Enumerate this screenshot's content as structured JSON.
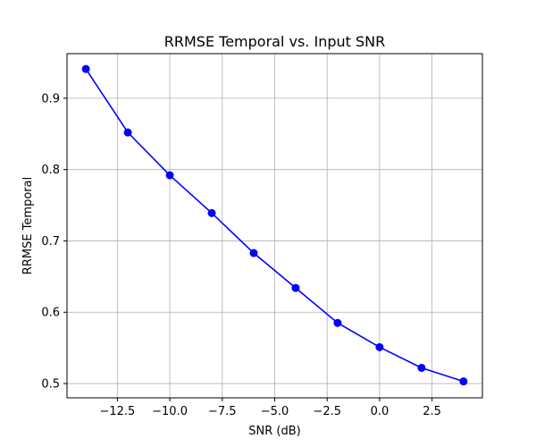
{
  "chart_data": {
    "type": "line",
    "title": "RRMSE Temporal vs. Input SNR",
    "xlabel": "SNR (dB)",
    "ylabel": "RRMSE Temporal",
    "x": [
      -14,
      -12,
      -10,
      -8,
      -6,
      -4,
      -2,
      0,
      2,
      4
    ],
    "series": [
      {
        "values": [
          0.941,
          0.852,
          0.792,
          0.739,
          0.683,
          0.634,
          0.585,
          0.551,
          0.522,
          0.503
        ],
        "color": "#0000ff",
        "marker": "circle"
      }
    ],
    "xlim": [
      -14.9,
      4.9
    ],
    "ylim": [
      0.48,
      0.9625
    ],
    "xticks": [
      -12.5,
      -10.0,
      -7.5,
      -5.0,
      -2.5,
      0.0,
      2.5
    ],
    "xtick_labels": [
      "−12.5",
      "−10.0",
      "−7.5",
      "−5.0",
      "−2.5",
      "0.0",
      "2.5"
    ],
    "yticks": [
      0.5,
      0.6,
      0.7,
      0.8,
      0.9
    ],
    "ytick_labels": [
      "0.5",
      "0.6",
      "0.7",
      "0.8",
      "0.9"
    ],
    "grid": true
  }
}
